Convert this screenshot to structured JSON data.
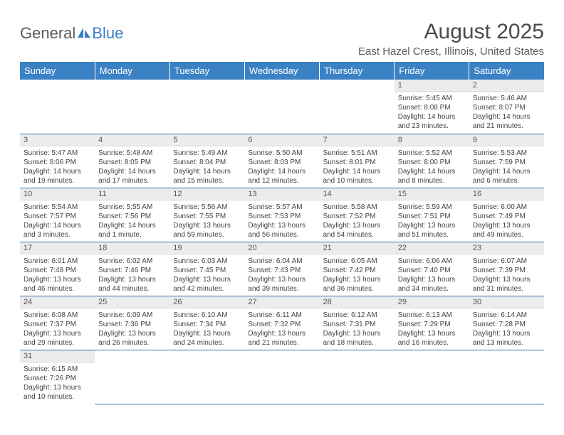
{
  "logo": {
    "part1": "General",
    "part2": "Blue"
  },
  "title": "August 2025",
  "location": "East Hazel Crest, Illinois, United States",
  "colors": {
    "header_bg": "#3b82c4",
    "header_fg": "#ffffff",
    "daynum_bg": "#ececec",
    "cell_border": "#3b6fa8",
    "text": "#3a3a3a",
    "logo_blue": "#3b7fc4"
  },
  "weekdays": [
    "Sunday",
    "Monday",
    "Tuesday",
    "Wednesday",
    "Thursday",
    "Friday",
    "Saturday"
  ],
  "weeks": [
    [
      null,
      null,
      null,
      null,
      null,
      {
        "n": "1",
        "sr": "Sunrise: 5:45 AM",
        "ss": "Sunset: 8:08 PM",
        "dl": "Daylight: 14 hours and 23 minutes."
      },
      {
        "n": "2",
        "sr": "Sunrise: 5:46 AM",
        "ss": "Sunset: 8:07 PM",
        "dl": "Daylight: 14 hours and 21 minutes."
      }
    ],
    [
      {
        "n": "3",
        "sr": "Sunrise: 5:47 AM",
        "ss": "Sunset: 8:06 PM",
        "dl": "Daylight: 14 hours and 19 minutes."
      },
      {
        "n": "4",
        "sr": "Sunrise: 5:48 AM",
        "ss": "Sunset: 8:05 PM",
        "dl": "Daylight: 14 hours and 17 minutes."
      },
      {
        "n": "5",
        "sr": "Sunrise: 5:49 AM",
        "ss": "Sunset: 8:04 PM",
        "dl": "Daylight: 14 hours and 15 minutes."
      },
      {
        "n": "6",
        "sr": "Sunrise: 5:50 AM",
        "ss": "Sunset: 8:03 PM",
        "dl": "Daylight: 14 hours and 12 minutes."
      },
      {
        "n": "7",
        "sr": "Sunrise: 5:51 AM",
        "ss": "Sunset: 8:01 PM",
        "dl": "Daylight: 14 hours and 10 minutes."
      },
      {
        "n": "8",
        "sr": "Sunrise: 5:52 AM",
        "ss": "Sunset: 8:00 PM",
        "dl": "Daylight: 14 hours and 8 minutes."
      },
      {
        "n": "9",
        "sr": "Sunrise: 5:53 AM",
        "ss": "Sunset: 7:59 PM",
        "dl": "Daylight: 14 hours and 6 minutes."
      }
    ],
    [
      {
        "n": "10",
        "sr": "Sunrise: 5:54 AM",
        "ss": "Sunset: 7:57 PM",
        "dl": "Daylight: 14 hours and 3 minutes."
      },
      {
        "n": "11",
        "sr": "Sunrise: 5:55 AM",
        "ss": "Sunset: 7:56 PM",
        "dl": "Daylight: 14 hours and 1 minute."
      },
      {
        "n": "12",
        "sr": "Sunrise: 5:56 AM",
        "ss": "Sunset: 7:55 PM",
        "dl": "Daylight: 13 hours and 59 minutes."
      },
      {
        "n": "13",
        "sr": "Sunrise: 5:57 AM",
        "ss": "Sunset: 7:53 PM",
        "dl": "Daylight: 13 hours and 56 minutes."
      },
      {
        "n": "14",
        "sr": "Sunrise: 5:58 AM",
        "ss": "Sunset: 7:52 PM",
        "dl": "Daylight: 13 hours and 54 minutes."
      },
      {
        "n": "15",
        "sr": "Sunrise: 5:59 AM",
        "ss": "Sunset: 7:51 PM",
        "dl": "Daylight: 13 hours and 51 minutes."
      },
      {
        "n": "16",
        "sr": "Sunrise: 6:00 AM",
        "ss": "Sunset: 7:49 PM",
        "dl": "Daylight: 13 hours and 49 minutes."
      }
    ],
    [
      {
        "n": "17",
        "sr": "Sunrise: 6:01 AM",
        "ss": "Sunset: 7:48 PM",
        "dl": "Daylight: 13 hours and 46 minutes."
      },
      {
        "n": "18",
        "sr": "Sunrise: 6:02 AM",
        "ss": "Sunset: 7:46 PM",
        "dl": "Daylight: 13 hours and 44 minutes."
      },
      {
        "n": "19",
        "sr": "Sunrise: 6:03 AM",
        "ss": "Sunset: 7:45 PM",
        "dl": "Daylight: 13 hours and 42 minutes."
      },
      {
        "n": "20",
        "sr": "Sunrise: 6:04 AM",
        "ss": "Sunset: 7:43 PM",
        "dl": "Daylight: 13 hours and 39 minutes."
      },
      {
        "n": "21",
        "sr": "Sunrise: 6:05 AM",
        "ss": "Sunset: 7:42 PM",
        "dl": "Daylight: 13 hours and 36 minutes."
      },
      {
        "n": "22",
        "sr": "Sunrise: 6:06 AM",
        "ss": "Sunset: 7:40 PM",
        "dl": "Daylight: 13 hours and 34 minutes."
      },
      {
        "n": "23",
        "sr": "Sunrise: 6:07 AM",
        "ss": "Sunset: 7:39 PM",
        "dl": "Daylight: 13 hours and 31 minutes."
      }
    ],
    [
      {
        "n": "24",
        "sr": "Sunrise: 6:08 AM",
        "ss": "Sunset: 7:37 PM",
        "dl": "Daylight: 13 hours and 29 minutes."
      },
      {
        "n": "25",
        "sr": "Sunrise: 6:09 AM",
        "ss": "Sunset: 7:36 PM",
        "dl": "Daylight: 13 hours and 26 minutes."
      },
      {
        "n": "26",
        "sr": "Sunrise: 6:10 AM",
        "ss": "Sunset: 7:34 PM",
        "dl": "Daylight: 13 hours and 24 minutes."
      },
      {
        "n": "27",
        "sr": "Sunrise: 6:11 AM",
        "ss": "Sunset: 7:32 PM",
        "dl": "Daylight: 13 hours and 21 minutes."
      },
      {
        "n": "28",
        "sr": "Sunrise: 6:12 AM",
        "ss": "Sunset: 7:31 PM",
        "dl": "Daylight: 13 hours and 18 minutes."
      },
      {
        "n": "29",
        "sr": "Sunrise: 6:13 AM",
        "ss": "Sunset: 7:29 PM",
        "dl": "Daylight: 13 hours and 16 minutes."
      },
      {
        "n": "30",
        "sr": "Sunrise: 6:14 AM",
        "ss": "Sunset: 7:28 PM",
        "dl": "Daylight: 13 hours and 13 minutes."
      }
    ],
    [
      {
        "n": "31",
        "sr": "Sunrise: 6:15 AM",
        "ss": "Sunset: 7:26 PM",
        "dl": "Daylight: 13 hours and 10 minutes."
      },
      null,
      null,
      null,
      null,
      null,
      null
    ]
  ]
}
